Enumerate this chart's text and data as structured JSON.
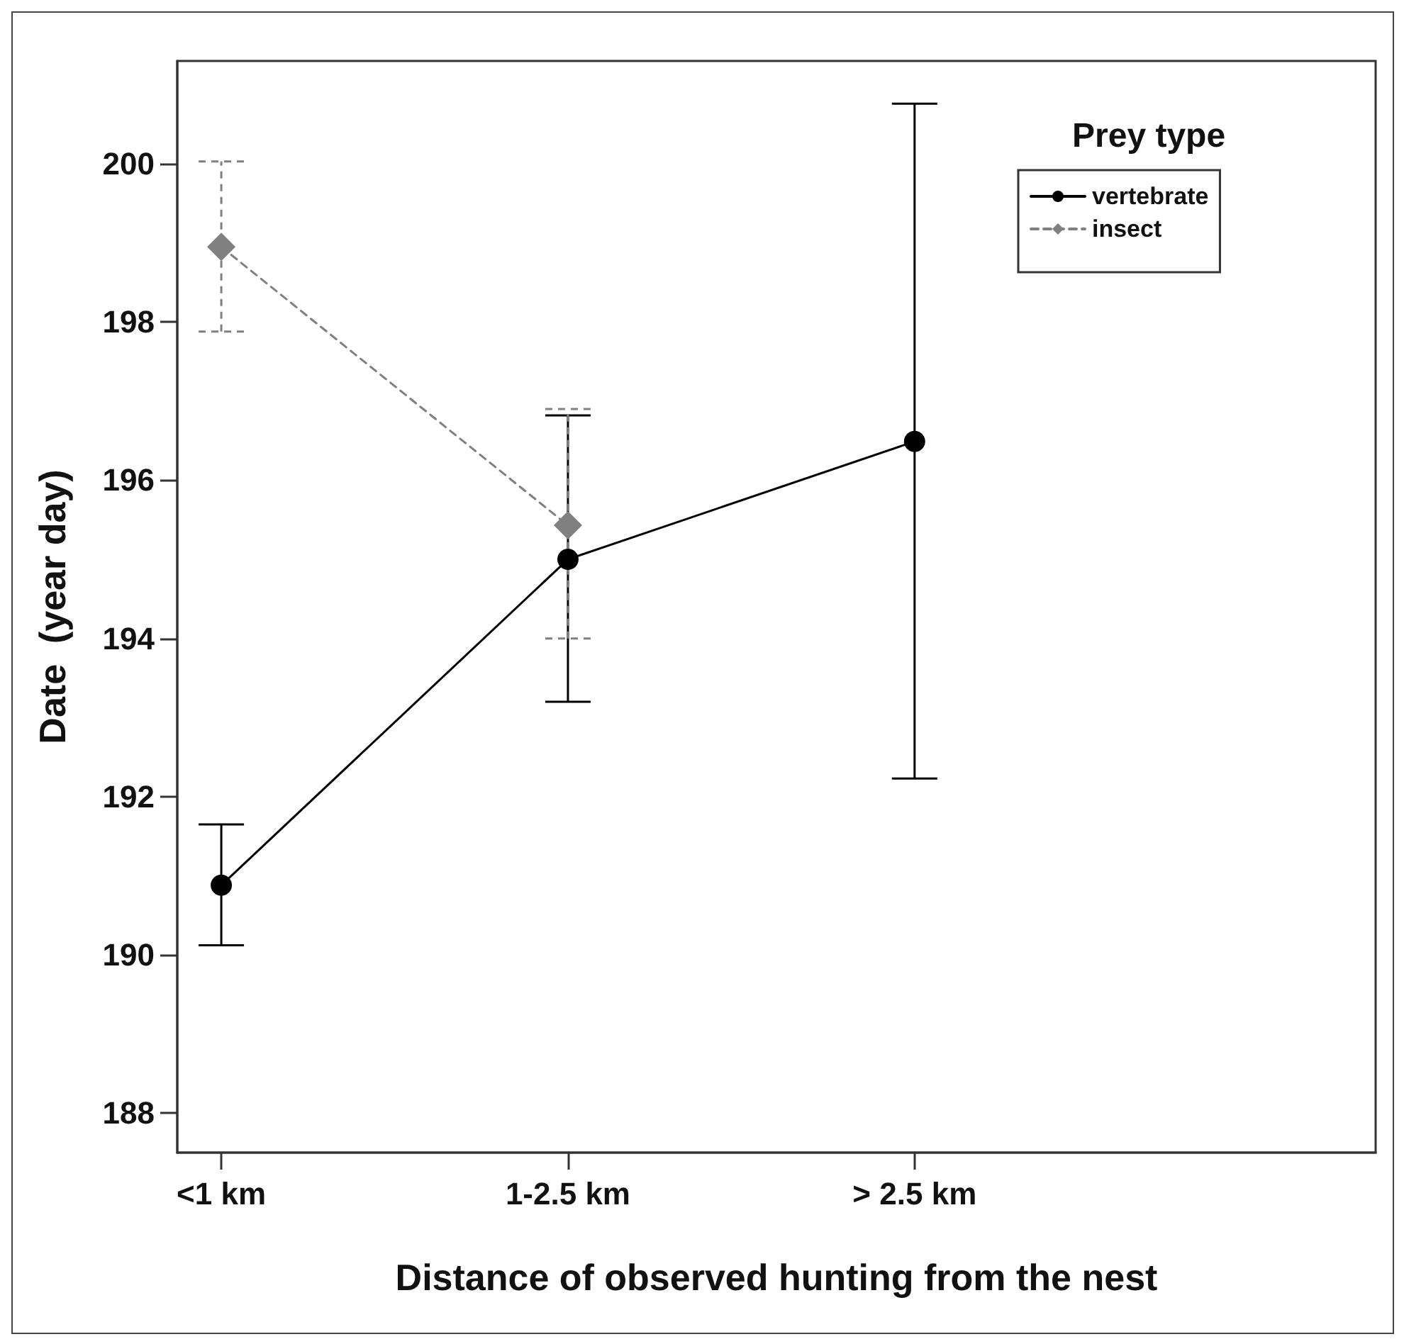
{
  "chart_data": {
    "type": "line",
    "xlabel": "Distance of observed hunting from the nest",
    "ylabel": "Date  (year day)",
    "legend_title": "Prey type",
    "legend": "top right",
    "categories": [
      "<1 km",
      "1-2.5 km",
      "> 2.5 km"
    ],
    "series": [
      {
        "name": "vertebrate",
        "color": "#000000",
        "marker": "circle",
        "line_style": "solid",
        "values": [
          190.88,
          195.0,
          196.49
        ],
        "errors": [
          [
            190.12,
            191.65
          ],
          [
            193.2,
            196.82
          ],
          [
            192.23,
            200.76
          ]
        ]
      },
      {
        "name": "insect",
        "color": "#808080",
        "marker": "diamond",
        "line_style": "dashed",
        "values": [
          198.95,
          195.43,
          null
        ],
        "errors": [
          [
            197.88,
            200.03
          ],
          [
            194.0,
            196.9
          ],
          null
        ]
      }
    ],
    "ylim": [
      187.5,
      201.3
    ],
    "yticks": [
      188,
      190,
      192,
      194,
      196,
      198,
      200
    ],
    "grid": false
  }
}
